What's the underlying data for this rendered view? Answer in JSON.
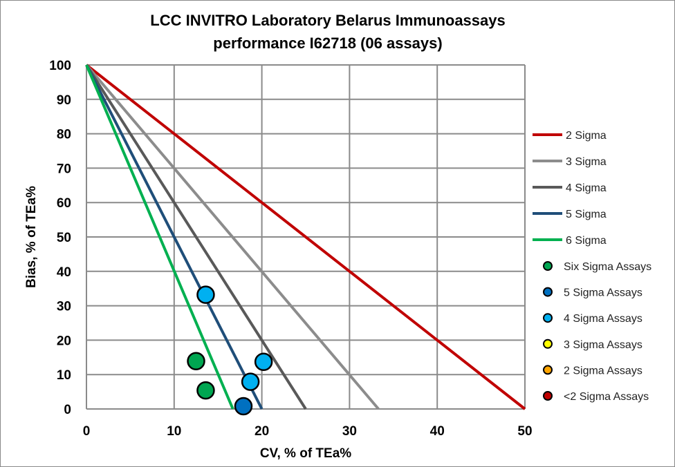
{
  "chart_data": {
    "type": "scatter",
    "title_lines": [
      "LCC INVITRO Laboratory Belarus Immunoassays",
      "performance I62718 (06 assays)"
    ],
    "xlabel": "CV, % of TEa%",
    "ylabel": "Bias, % of TEa%",
    "xlim": [
      0,
      50
    ],
    "ylim": [
      0,
      100
    ],
    "xticks": [
      "0",
      "10",
      "20",
      "30",
      "40",
      "50"
    ],
    "yticks": [
      "0",
      "10",
      "20",
      "30",
      "40",
      "50",
      "60",
      "70",
      "80",
      "90",
      "100"
    ],
    "grid": true,
    "legend_position": "right",
    "lines": [
      {
        "name": "2 Sigma",
        "color": "#C00000",
        "x": [
          0,
          50
        ],
        "y": [
          100,
          0
        ]
      },
      {
        "name": "3 Sigma",
        "color": "#8C8C8C",
        "x": [
          0,
          33.3
        ],
        "y": [
          100,
          0
        ]
      },
      {
        "name": "4 Sigma",
        "color": "#595959",
        "x": [
          0,
          25
        ],
        "y": [
          100,
          0
        ]
      },
      {
        "name": "5 Sigma",
        "color": "#1F4E79",
        "x": [
          0,
          20
        ],
        "y": [
          100,
          0
        ]
      },
      {
        "name": "6 Sigma",
        "color": "#00B050",
        "x": [
          0,
          16.7
        ],
        "y": [
          100,
          0
        ]
      }
    ],
    "point_series": [
      {
        "name": "Six Sigma Assays",
        "color": "#00A651",
        "points": [
          [
            12.5,
            13.9
          ],
          [
            13.6,
            5.4
          ]
        ]
      },
      {
        "name": "5 Sigma Assays",
        "color": "#0070C0",
        "points": [
          [
            17.9,
            0.8
          ]
        ]
      },
      {
        "name": "4 Sigma Assays",
        "color": "#00B0F0",
        "points": [
          [
            13.6,
            33.2
          ],
          [
            20.2,
            13.7
          ],
          [
            18.7,
            7.9
          ]
        ]
      },
      {
        "name": "3 Sigma Assays",
        "color": "#FFFF00",
        "points": []
      },
      {
        "name": "2 Sigma Assays",
        "color": "#FFA500",
        "points": []
      },
      {
        "name": "<2 Sigma Assays",
        "color": "#C00000",
        "points": []
      }
    ]
  }
}
